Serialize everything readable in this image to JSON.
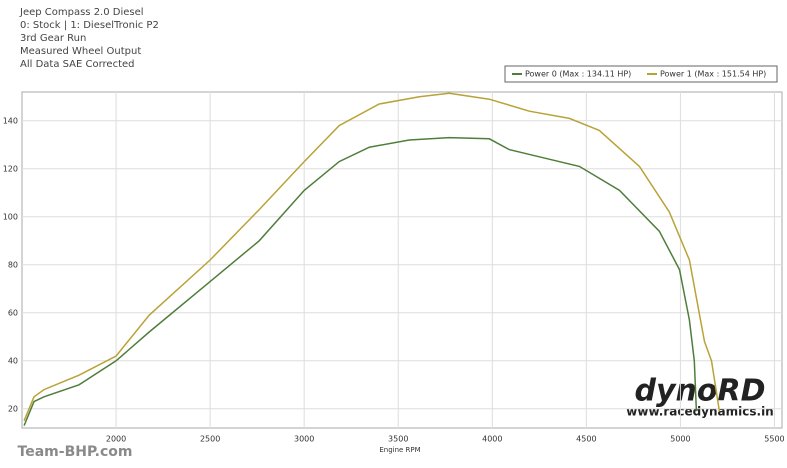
{
  "chart_data": {
    "type": "line",
    "title": "Jeep Compass 2.0 Diesel",
    "subtitle": [
      "0: Stock | 1: DieselTronic P2",
      "3rd Gear Run",
      "Measured Wheel Output",
      "All Data SAE Corrected"
    ],
    "x_label": "Engine RPM",
    "xlim": [
      1500,
      5540
    ],
    "xticks": [
      2000,
      2500,
      3000,
      3500,
      4000,
      4500,
      5000,
      5500
    ],
    "ylim": [
      12,
      152
    ],
    "yticks": [
      20,
      40,
      60,
      80,
      100,
      120,
      140
    ],
    "grid": true,
    "legend": "top-right",
    "series": [
      {
        "name": "Power 0 (Max : 134.11 HP)",
        "color": "#4f7d3c",
        "x": [
          1511,
          1564,
          1617,
          1803,
          2000,
          2176,
          2500,
          2761,
          3000,
          3186,
          3346,
          3559,
          3771,
          3984,
          4090,
          4250,
          4463,
          4676,
          4888,
          4995,
          5048,
          5074,
          5085
        ],
        "values": [
          13,
          23,
          25,
          30,
          40,
          52,
          73,
          90,
          111,
          123,
          129,
          132,
          133,
          132.5,
          128,
          125,
          121,
          111,
          94,
          78,
          57,
          40,
          19
        ]
      },
      {
        "name": "Power 1 (Max : 151.54 HP)",
        "color": "#b9a236",
        "x": [
          1511,
          1564,
          1617,
          1803,
          2000,
          2176,
          2500,
          2761,
          3000,
          3186,
          3399,
          3612,
          3771,
          3984,
          4197,
          4410,
          4569,
          4782,
          4941,
          5048,
          5128,
          5165,
          5207
        ],
        "values": [
          15,
          25,
          28,
          34,
          42,
          59,
          82,
          103,
          123,
          138,
          147,
          150,
          151.5,
          149,
          144,
          141,
          136,
          121,
          102,
          82,
          48,
          40,
          19
        ]
      }
    ],
    "brand": "dynoRD",
    "website": "www.racedynamics.in",
    "watermark": "Team-BHP.com"
  }
}
